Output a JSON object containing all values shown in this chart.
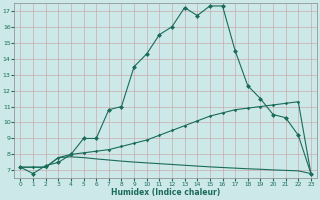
{
  "xlabel": "Humidex (Indice chaleur)",
  "bg_color": "#cce8e8",
  "line_color": "#1a6b5a",
  "grid_color": "#aad4d4",
  "xlim": [
    -0.5,
    23.5
  ],
  "ylim": [
    6.5,
    17.5
  ],
  "xticks": [
    0,
    1,
    2,
    3,
    4,
    5,
    6,
    7,
    8,
    9,
    10,
    11,
    12,
    13,
    14,
    15,
    16,
    17,
    18,
    19,
    20,
    21,
    22,
    23
  ],
  "yticks": [
    7,
    8,
    9,
    10,
    11,
    12,
    13,
    14,
    15,
    16,
    17
  ],
  "curve1_x": [
    0,
    1,
    2,
    3,
    4,
    5,
    6,
    7,
    8,
    9,
    10,
    11,
    12,
    13,
    14,
    15,
    16,
    17,
    18,
    19,
    20,
    21,
    22,
    23
  ],
  "curve1_y": [
    7.2,
    6.8,
    7.3,
    7.5,
    8.0,
    9.0,
    9.0,
    10.8,
    11.0,
    13.5,
    14.3,
    15.5,
    16.0,
    17.2,
    16.7,
    17.3,
    17.3,
    14.5,
    12.3,
    11.5,
    10.5,
    10.3,
    9.2,
    6.8
  ],
  "curve2_x": [
    0,
    1,
    2,
    3,
    4,
    5,
    6,
    7,
    8,
    9,
    10,
    11,
    12,
    13,
    14,
    15,
    16,
    17,
    18,
    19,
    20,
    21,
    22,
    23
  ],
  "curve2_y": [
    7.2,
    7.2,
    7.2,
    7.8,
    8.0,
    8.1,
    8.2,
    8.3,
    8.5,
    8.7,
    8.9,
    9.2,
    9.5,
    9.8,
    10.1,
    10.4,
    10.6,
    10.8,
    10.9,
    11.0,
    11.1,
    11.2,
    11.3,
    6.8
  ],
  "curve3_x": [
    0,
    1,
    2,
    3,
    4,
    5,
    6,
    7,
    8,
    9,
    10,
    11,
    12,
    13,
    14,
    15,
    16,
    17,
    18,
    19,
    20,
    21,
    22,
    23
  ],
  "curve3_y": [
    7.2,
    7.2,
    7.2,
    7.8,
    7.85,
    7.8,
    7.72,
    7.65,
    7.58,
    7.52,
    7.47,
    7.42,
    7.37,
    7.32,
    7.27,
    7.22,
    7.18,
    7.14,
    7.1,
    7.07,
    7.03,
    7.0,
    6.97,
    6.8
  ]
}
